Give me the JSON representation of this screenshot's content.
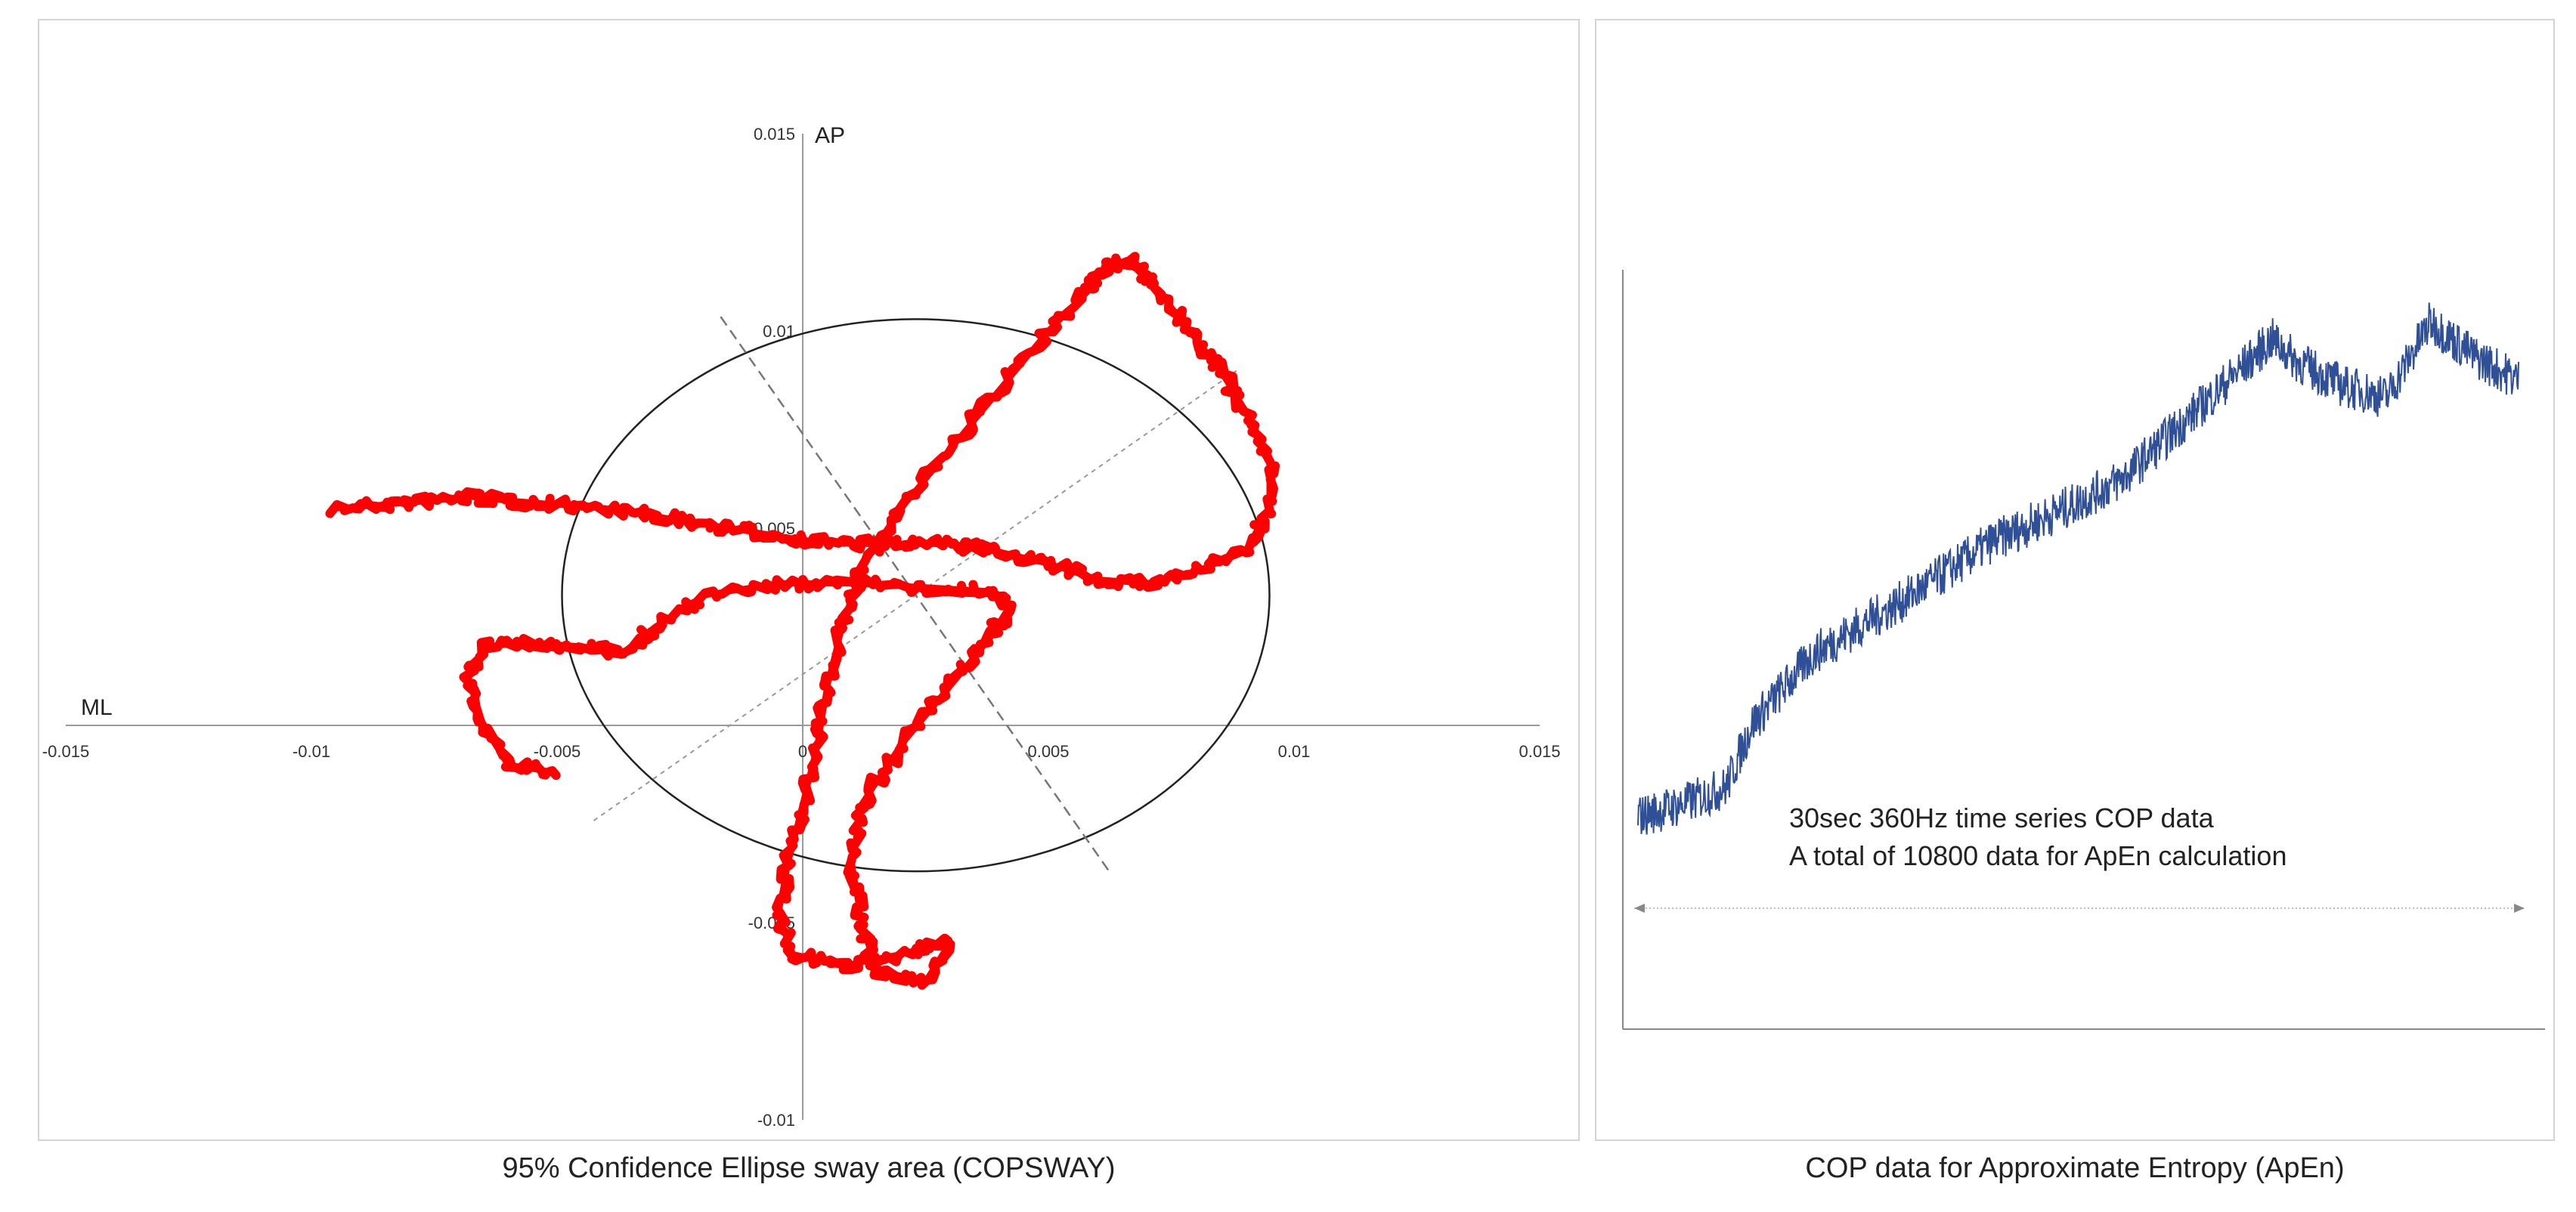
{
  "captions": {
    "left": "95% Confidence Ellipse sway area (COPSWAY)",
    "right": "COP data for Approximate Entropy (ApEn)"
  },
  "colors": {
    "sway_trace": "#ff0000",
    "time_series": "#2f4f96",
    "ellipse": "#222222",
    "axes": "#9a9a9a"
  },
  "chart_data": [
    {
      "type": "scatter",
      "title": "95% Confidence Ellipse sway area (COPSWAY)",
      "xlabel": "ML",
      "ylabel": "AP",
      "xlim": [
        -0.015,
        0.015
      ],
      "ylim": [
        -0.01,
        0.015
      ],
      "x_ticks": [
        "-0.015",
        "-0.01",
        "-0.005",
        "0",
        "0.005",
        "0.01",
        "0.015"
      ],
      "y_ticks": [
        "0.015",
        "0.01",
        "0.005",
        "-0.005",
        "-0.01"
      ],
      "grid": false,
      "series": [
        {
          "points": [
            [
              -0.0095,
              0.0055
            ],
            [
              -0.0085,
              0.0056
            ],
            [
              -0.0075,
              0.0057
            ],
            [
              -0.0068,
              0.0058
            ],
            [
              -0.006,
              0.0057
            ],
            [
              -0.005,
              0.0056
            ],
            [
              -0.004,
              0.0055
            ],
            [
              -0.003,
              0.0053
            ],
            [
              -0.002,
              0.0051
            ],
            [
              -0.001,
              0.0049
            ],
            [
              0.0,
              0.0047
            ],
            [
              0.001,
              0.0046
            ],
            [
              0.002,
              0.0046
            ],
            [
              0.003,
              0.0046
            ],
            [
              0.004,
              0.0044
            ],
            [
              0.005,
              0.0041
            ],
            [
              0.006,
              0.0037
            ],
            [
              0.007,
              0.0036
            ],
            [
              0.008,
              0.0039
            ],
            [
              0.009,
              0.0044
            ],
            [
              0.0095,
              0.0055
            ],
            [
              0.0095,
              0.0068
            ],
            [
              0.009,
              0.008
            ],
            [
              0.0085,
              0.009
            ],
            [
              0.008,
              0.0098
            ],
            [
              0.0075,
              0.0106
            ],
            [
              0.007,
              0.0114
            ],
            [
              0.0066,
              0.0118
            ],
            [
              0.0062,
              0.0116
            ],
            [
              0.0058,
              0.011
            ],
            [
              0.005,
              0.01
            ],
            [
              0.004,
              0.0085
            ],
            [
              0.003,
              0.007
            ],
            [
              0.002,
              0.0055
            ],
            [
              0.0012,
              0.004
            ],
            [
              0.0008,
              0.0025
            ],
            [
              0.0005,
              0.001
            ],
            [
              0.0003,
              -0.0005
            ],
            [
              0.0,
              -0.002
            ],
            [
              -0.0003,
              -0.0035
            ],
            [
              -0.0005,
              -0.0048
            ],
            [
              -0.0002,
              -0.0058
            ],
            [
              0.0008,
              -0.0061
            ],
            [
              0.002,
              -0.0058
            ],
            [
              0.003,
              -0.0055
            ],
            [
              0.0025,
              -0.0065
            ],
            [
              0.0015,
              -0.0062
            ],
            [
              0.0012,
              -0.005
            ],
            [
              0.001,
              -0.0035
            ],
            [
              0.0012,
              -0.002
            ],
            [
              0.002,
              -0.0005
            ],
            [
              0.003,
              0.001
            ],
            [
              0.0038,
              0.0022
            ],
            [
              0.0042,
              0.003
            ],
            [
              0.0038,
              0.0034
            ],
            [
              0.0025,
              0.0035
            ],
            [
              0.001,
              0.0036
            ],
            [
              -0.0005,
              0.0036
            ],
            [
              -0.002,
              0.0033
            ],
            [
              -0.003,
              0.0025
            ],
            [
              -0.0037,
              0.0018
            ],
            [
              -0.0045,
              0.002
            ],
            [
              -0.0055,
              0.0021
            ],
            [
              -0.0065,
              0.002
            ],
            [
              -0.0068,
              0.0012
            ],
            [
              -0.0065,
              0.0
            ],
            [
              -0.006,
              -0.001
            ],
            [
              -0.005,
              -0.0012
            ]
          ]
        }
      ],
      "ellipse": {
        "label": "95% confidence ellipse",
        "center": [
          0.0023,
          0.0033
        ],
        "semi_axes": [
          0.0072,
          0.007
        ],
        "angle_deg": 35
      }
    },
    {
      "type": "line",
      "title": "COP data for Approximate Entropy (ApEn)",
      "xlabel": "",
      "ylabel": "",
      "annotations": [
        "30sec 360Hz time series COP data",
        "A total of 10800 data for ApEn calculation"
      ],
      "sample_rate_hz": 360,
      "duration_s": 30,
      "n_points": 10800,
      "series": [
        {
          "trend": [
            [
              0,
              0.08
            ],
            [
              0.05,
              0.1
            ],
            [
              0.1,
              0.13
            ],
            [
              0.13,
              0.24
            ],
            [
              0.2,
              0.36
            ],
            [
              0.3,
              0.45
            ],
            [
              0.4,
              0.55
            ],
            [
              0.5,
              0.62
            ],
            [
              0.55,
              0.66
            ],
            [
              0.65,
              0.8
            ],
            [
              0.72,
              0.9
            ],
            [
              0.75,
              0.86
            ],
            [
              0.8,
              0.82
            ],
            [
              0.85,
              0.8
            ],
            [
              0.9,
              0.93
            ],
            [
              0.95,
              0.87
            ],
            [
              1.0,
              0.83
            ]
          ]
        }
      ]
    }
  ]
}
